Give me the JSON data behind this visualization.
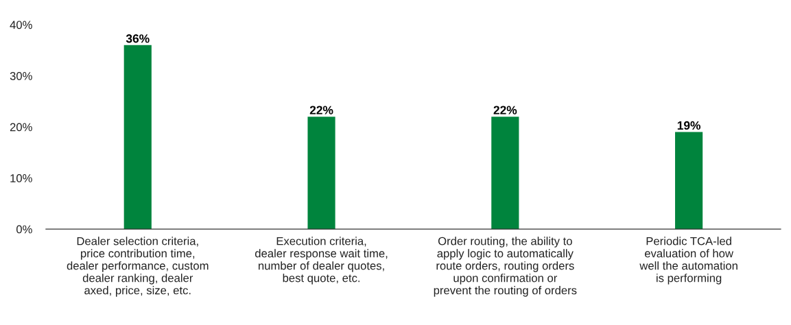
{
  "chart_data": {
    "type": "bar",
    "categories": [
      "Dealer selection criteria,\nprice contribution time,\ndealer performance, custom\ndealer ranking, dealer\naxed, price, size, etc.",
      "Execution criteria,\ndealer response wait time,\nnumber of dealer quotes,\nbest quote, etc.",
      "Order routing, the ability to\napply logic to automatically\nroute orders, routing orders\nupon confirmation or\nprevent the routing of orders",
      "Periodic TCA-led\nevaluation of how\nwell the automation\nis performing"
    ],
    "values": [
      36,
      22,
      22,
      19
    ],
    "value_labels": [
      "36%",
      "22%",
      "22%",
      "19%"
    ],
    "color": "#00843d",
    "ylim": [
      0,
      40
    ],
    "yticks": [
      {
        "value": 0,
        "label": "0%"
      },
      {
        "value": 10,
        "label": "10%"
      },
      {
        "value": 20,
        "label": "20%"
      },
      {
        "value": 30,
        "label": "30%"
      },
      {
        "value": 40,
        "label": "40%"
      }
    ],
    "grid": false,
    "legend": false
  }
}
